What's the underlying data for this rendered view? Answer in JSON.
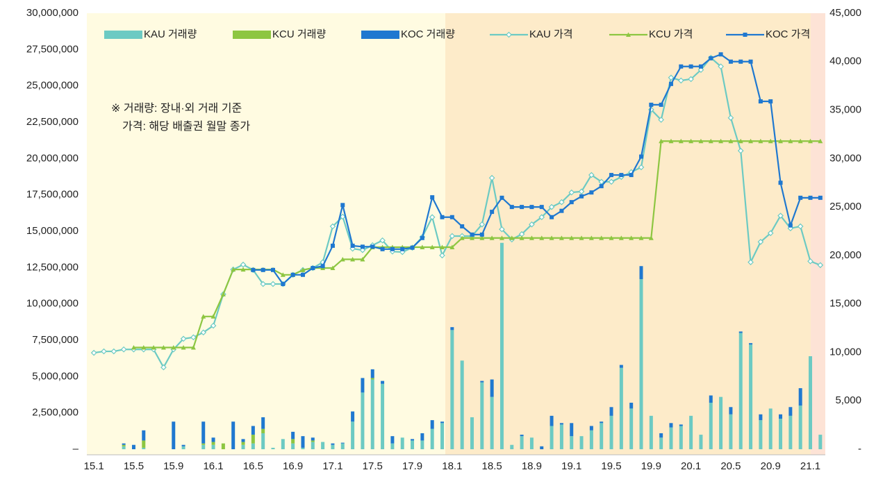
{
  "chart_data": {
    "type": "combo",
    "annotations": [
      "※ 거래량: 장내·외 거래 기준",
      "가격: 해당 배출권 월말 종가"
    ],
    "categories": [
      "15.1",
      null,
      null,
      null,
      "15.5",
      null,
      null,
      null,
      "15.9",
      null,
      null,
      null,
      "16.1",
      null,
      null,
      null,
      "16.5",
      null,
      null,
      null,
      "16.9",
      null,
      null,
      null,
      "17.1",
      null,
      null,
      null,
      "17.5",
      null,
      null,
      null,
      "17.9",
      null,
      null,
      null,
      "18.1",
      null,
      null,
      null,
      "18.5",
      null,
      null,
      null,
      "18.9",
      null,
      null,
      null,
      "19.1",
      null,
      null,
      null,
      "19.5",
      null,
      null,
      null,
      "19.9",
      null,
      null,
      null,
      "20.1",
      null,
      null,
      null,
      "20.5",
      null,
      null,
      null,
      "20.9",
      null,
      null,
      null,
      "21.1",
      null
    ],
    "ylim": [
      0,
      30000000
    ],
    "yticks": [
      {
        "value": 0,
        "label": "–"
      },
      {
        "value": 2500000,
        "label": "2,500,000"
      },
      {
        "value": 5000000,
        "label": "5,000,000"
      },
      {
        "value": 7500000,
        "label": "7,500,000"
      },
      {
        "value": 10000000,
        "label": "10,000,000"
      },
      {
        "value": 12500000,
        "label": "12,500,000"
      },
      {
        "value": 15000000,
        "label": "15,000,000"
      },
      {
        "value": 17500000,
        "label": "17,500,000"
      },
      {
        "value": 20000000,
        "label": "20,000,000"
      },
      {
        "value": 22500000,
        "label": "22,500,000"
      },
      {
        "value": 25000000,
        "label": "25,000,000"
      },
      {
        "value": 27500000,
        "label": "27,500,000"
      },
      {
        "value": 30000000,
        "label": "30,000,000"
      }
    ],
    "y2lim": [
      0,
      45000
    ],
    "y2ticks": [
      {
        "value": 0,
        "label": "-"
      },
      {
        "value": 5000,
        "label": "5,000"
      },
      {
        "value": 10000,
        "label": "10,000"
      },
      {
        "value": 15000,
        "label": "15,000"
      },
      {
        "value": 20000,
        "label": "20,000"
      },
      {
        "value": 25000,
        "label": "25,000"
      },
      {
        "value": 30000,
        "label": "30,000"
      },
      {
        "value": 35000,
        "label": "35,000"
      },
      {
        "value": 40000,
        "label": "40,000"
      },
      {
        "value": 45000,
        "label": "45,000"
      }
    ],
    "legend": "top",
    "series": [
      {
        "name": "KAU 거래량",
        "type": "bar",
        "color": "#6ccac3",
        "values": [
          0,
          0,
          0,
          200000,
          0,
          100000,
          0,
          0,
          0,
          200000,
          0,
          300000,
          300000,
          0,
          0,
          300000,
          400000,
          1100000,
          100000,
          700000,
          400000,
          100000,
          500000,
          500000,
          300000,
          400000,
          1900000,
          3900000,
          4800000,
          4500000,
          400000,
          800000,
          600000,
          600000,
          1400000,
          1800000,
          8200000,
          6100000,
          2200000,
          4600000,
          3600000,
          14200000,
          300000,
          900000,
          800000,
          0,
          1600000,
          1700000,
          900000,
          900000,
          1300000,
          1800000,
          2300000,
          5600000,
          2800000,
          11700000,
          2300000,
          800000,
          1500000,
          1600000,
          2300000,
          1000000,
          3200000,
          3600000,
          2400000,
          8000000,
          7200000,
          2000000,
          2800000,
          2100000,
          2300000,
          3000000,
          6400000,
          1000000
        ]
      },
      {
        "name": "KCU 거래량",
        "type": "bar",
        "color": "#8dc641",
        "values": [
          0,
          0,
          0,
          100000,
          0,
          500000,
          0,
          0,
          0,
          0,
          0,
          100000,
          200000,
          400000,
          0,
          200000,
          600000,
          300000,
          0,
          0,
          300000,
          0,
          100000,
          0,
          0,
          0,
          0,
          0,
          100000,
          0,
          0,
          0,
          0,
          0,
          0,
          0,
          0,
          0,
          0,
          0,
          0,
          0,
          0,
          0,
          0,
          0,
          0,
          0,
          0,
          0,
          0,
          0,
          0,
          0,
          0,
          0,
          0,
          0,
          0,
          0,
          0,
          0,
          0,
          0,
          0,
          0,
          0,
          0,
          0,
          0,
          0,
          0,
          0,
          0
        ]
      },
      {
        "name": "KOC 거래량",
        "type": "bar",
        "color": "#1f78d0",
        "values": [
          0,
          0,
          0,
          100000,
          300000,
          700000,
          0,
          0,
          1900000,
          100000,
          0,
          1500000,
          300000,
          0,
          1900000,
          200000,
          600000,
          800000,
          0,
          0,
          500000,
          800000,
          200000,
          0,
          100000,
          50000,
          700000,
          1000000,
          600000,
          200000,
          500000,
          0,
          100000,
          500000,
          600000,
          100000,
          200000,
          0,
          0,
          100000,
          1200000,
          0,
          0,
          100000,
          0,
          200000,
          700000,
          100000,
          900000,
          0,
          300000,
          100000,
          600000,
          200000,
          400000,
          900000,
          0,
          300000,
          300000,
          100000,
          0,
          0,
          500000,
          0,
          500000,
          100000,
          100000,
          400000,
          0,
          300000,
          600000,
          1200000,
          0,
          0
        ]
      },
      {
        "name": "KAU 가격",
        "type": "line",
        "axis": "y2",
        "marker": "diamond",
        "color": "#6ccac3",
        "values": [
          9950,
          10100,
          10100,
          10300,
          10300,
          10300,
          10300,
          8450,
          10300,
          11400,
          11550,
          12050,
          12750,
          16000,
          18550,
          19050,
          18500,
          17050,
          17050,
          17050,
          18000,
          18500,
          18700,
          19300,
          23000,
          24000,
          20700,
          20550,
          21050,
          21550,
          20400,
          20350,
          20800,
          21900,
          23950,
          20000,
          22000,
          22000,
          22000,
          23200,
          28000,
          22700,
          21650,
          22200,
          23200,
          23950,
          25000,
          25500,
          26500,
          26600,
          28300,
          27600,
          27600,
          28100,
          28600,
          29100,
          35050,
          34000,
          38350,
          38050,
          38200,
          39150,
          40400,
          39500,
          34200,
          30800,
          19300,
          21400,
          22300,
          24100,
          22800,
          23000,
          19400,
          19000
        ]
      },
      {
        "name": "KCU 가격",
        "type": "line",
        "axis": "y2",
        "marker": "triangle",
        "color": "#8dc641",
        "values": [
          null,
          null,
          null,
          null,
          10500,
          10500,
          10500,
          10500,
          10500,
          10500,
          10500,
          13700,
          13700,
          16000,
          18550,
          18550,
          18550,
          18550,
          18550,
          18000,
          18000,
          18500,
          18700,
          18700,
          18700,
          19600,
          19600,
          19600,
          20850,
          20850,
          20850,
          20850,
          20850,
          20850,
          20850,
          20850,
          20850,
          21800,
          21800,
          21800,
          21800,
          21800,
          21800,
          21800,
          21800,
          21800,
          21800,
          21800,
          21800,
          21800,
          21800,
          21800,
          21800,
          21800,
          21800,
          21800,
          21800,
          31800,
          31800,
          31800,
          31800,
          31800,
          31800,
          31800,
          31800,
          31800,
          31800,
          31800,
          31800,
          31800,
          31800,
          31800,
          31800,
          31800
        ]
      },
      {
        "name": "KOC 가격",
        "type": "line",
        "axis": "y2",
        "marker": "square",
        "color": "#1f78d0",
        "values": [
          null,
          null,
          null,
          null,
          null,
          null,
          null,
          null,
          null,
          null,
          null,
          null,
          null,
          null,
          null,
          null,
          18500,
          18500,
          18500,
          17050,
          18000,
          18000,
          18700,
          18900,
          21000,
          25200,
          21000,
          20900,
          20900,
          20650,
          20650,
          20650,
          20800,
          21800,
          26000,
          23950,
          23950,
          23000,
          22150,
          22150,
          24500,
          25950,
          25000,
          25000,
          25000,
          25000,
          23950,
          24600,
          25500,
          26100,
          26500,
          27150,
          28300,
          28300,
          28300,
          30200,
          35550,
          35550,
          37700,
          39500,
          39500,
          39500,
          40350,
          40750,
          40000,
          40000,
          40000,
          35900,
          35900,
          27500,
          23100,
          25950,
          25950,
          25950
        ]
      }
    ]
  }
}
